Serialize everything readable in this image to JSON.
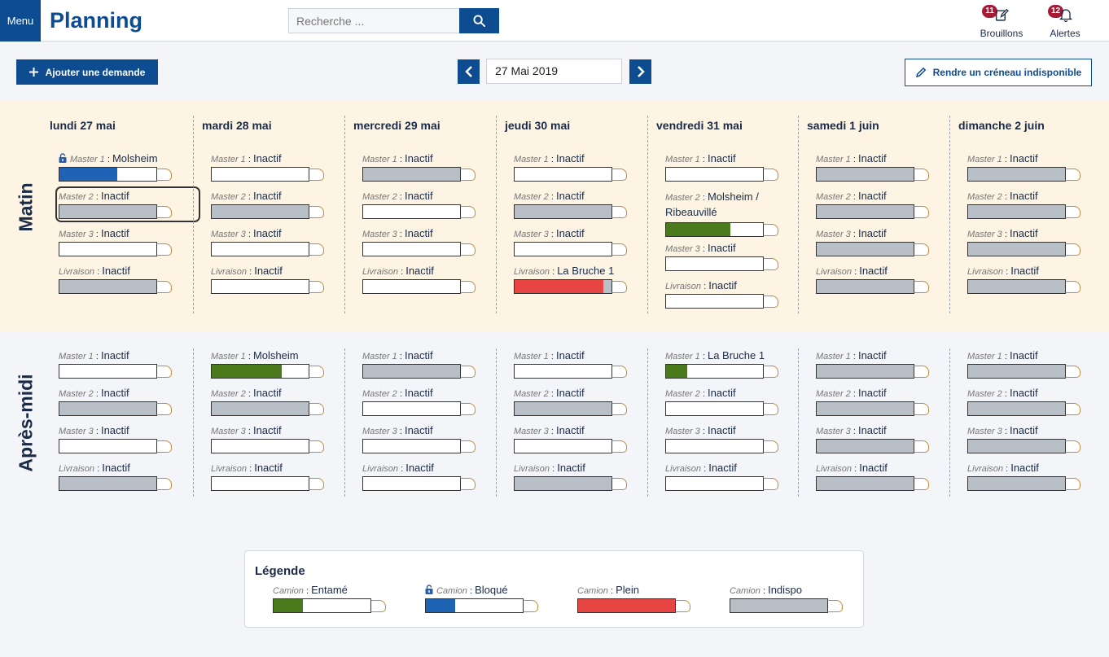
{
  "header": {
    "menu_label": "Menu",
    "title": "Planning",
    "search_placeholder": "Recherche ...",
    "drafts": {
      "label": "Brouillons",
      "count": "11"
    },
    "alerts": {
      "label": "Alertes",
      "count": "12"
    }
  },
  "toolbar": {
    "add_request_label": "Ajouter une demande",
    "current_date": "27 Mai 2019",
    "make_unavailable_label": "Rendre un créneau indisponible"
  },
  "periods": {
    "morning": "Matin",
    "afternoon": "Après-midi"
  },
  "colors": {
    "started": "#4b7a1c",
    "blocked": "#1f63b5",
    "full": "#e84444",
    "unavailable": "#b9bfc7",
    "primary": "#0e4c92"
  },
  "days": [
    {
      "header": "lundi 27 mai",
      "morning": [
        {
          "name": "Master 1",
          "value": "Molsheim",
          "state": "blocked",
          "fill": 0.6,
          "locked": true
        },
        {
          "name": "Master 2",
          "value": "Inactif",
          "state": "unavailable",
          "fill": 1,
          "selected": true
        },
        {
          "name": "Master 3",
          "value": "Inactif",
          "state": "empty",
          "fill": 0
        },
        {
          "name": "Livraison",
          "value": "Inactif",
          "state": "unavailable",
          "fill": 1
        }
      ],
      "afternoon": [
        {
          "name": "Master 1",
          "value": "Inactif",
          "state": "empty",
          "fill": 0
        },
        {
          "name": "Master 2",
          "value": "Inactif",
          "state": "unavailable",
          "fill": 1
        },
        {
          "name": "Master 3",
          "value": "Inactif",
          "state": "empty",
          "fill": 0
        },
        {
          "name": "Livraison",
          "value": "Inactif",
          "state": "unavailable",
          "fill": 1
        }
      ]
    },
    {
      "header": "mardi 28 mai",
      "morning": [
        {
          "name": "Master 1",
          "value": "Inactif",
          "state": "empty",
          "fill": 0
        },
        {
          "name": "Master 2",
          "value": "Inactif",
          "state": "unavailable",
          "fill": 1
        },
        {
          "name": "Master 3",
          "value": "Inactif",
          "state": "empty",
          "fill": 0
        },
        {
          "name": "Livraison",
          "value": "Inactif",
          "state": "empty",
          "fill": 0
        }
      ],
      "afternoon": [
        {
          "name": "Master 1",
          "value": "Molsheim",
          "state": "started",
          "fill": 0.72
        },
        {
          "name": "Master 2",
          "value": "Inactif",
          "state": "unavailable",
          "fill": 1
        },
        {
          "name": "Master 3",
          "value": "Inactif",
          "state": "empty",
          "fill": 0
        },
        {
          "name": "Livraison",
          "value": "Inactif",
          "state": "empty",
          "fill": 0
        }
      ]
    },
    {
      "header": "mercredi 29 mai",
      "morning": [
        {
          "name": "Master 1",
          "value": "Inactif",
          "state": "unavailable",
          "fill": 1
        },
        {
          "name": "Master 2",
          "value": "Inactif",
          "state": "empty",
          "fill": 0
        },
        {
          "name": "Master 3",
          "value": "Inactif",
          "state": "empty",
          "fill": 0
        },
        {
          "name": "Livraison",
          "value": "Inactif",
          "state": "empty",
          "fill": 0
        }
      ],
      "afternoon": [
        {
          "name": "Master 1",
          "value": "Inactif",
          "state": "unavailable",
          "fill": 1
        },
        {
          "name": "Master 2",
          "value": "Inactif",
          "state": "empty",
          "fill": 0
        },
        {
          "name": "Master 3",
          "value": "Inactif",
          "state": "empty",
          "fill": 0
        },
        {
          "name": "Livraison",
          "value": "Inactif",
          "state": "empty",
          "fill": 0
        }
      ]
    },
    {
      "header": "jeudi 30 mai",
      "morning": [
        {
          "name": "Master 1",
          "value": "Inactif",
          "state": "empty",
          "fill": 0
        },
        {
          "name": "Master 2",
          "value": "Inactif",
          "state": "unavailable",
          "fill": 1
        },
        {
          "name": "Master 3",
          "value": "Inactif",
          "state": "empty",
          "fill": 0
        },
        {
          "name": "Livraison",
          "value": "La Bruche 1",
          "state": "full",
          "fill": 0.92
        }
      ],
      "afternoon": [
        {
          "name": "Master 1",
          "value": "Inactif",
          "state": "empty",
          "fill": 0
        },
        {
          "name": "Master 2",
          "value": "Inactif",
          "state": "unavailable",
          "fill": 1
        },
        {
          "name": "Master 3",
          "value": "Inactif",
          "state": "empty",
          "fill": 0
        },
        {
          "name": "Livraison",
          "value": "Inactif",
          "state": "unavailable",
          "fill": 1
        }
      ]
    },
    {
      "header": "vendredi 31 mai",
      "morning": [
        {
          "name": "Master 1",
          "value": "Inactif",
          "state": "empty",
          "fill": 0
        },
        {
          "name": "Master 2",
          "value": "Molsheim / Ribeauvillé",
          "state": "started",
          "fill": 0.66
        },
        {
          "name": "Master 3",
          "value": "Inactif",
          "state": "empty",
          "fill": 0
        },
        {
          "name": "Livraison",
          "value": "Inactif",
          "state": "empty",
          "fill": 0
        }
      ],
      "afternoon": [
        {
          "name": "Master 1",
          "value": "La Bruche 1",
          "state": "started",
          "fill": 0.22
        },
        {
          "name": "Master 2",
          "value": "Inactif",
          "state": "empty",
          "fill": 0
        },
        {
          "name": "Master 3",
          "value": "Inactif",
          "state": "empty",
          "fill": 0
        },
        {
          "name": "Livraison",
          "value": "Inactif",
          "state": "empty",
          "fill": 0
        }
      ]
    },
    {
      "header": "samedi 1 juin",
      "morning": [
        {
          "name": "Master 1",
          "value": "Inactif",
          "state": "unavailable",
          "fill": 1
        },
        {
          "name": "Master 2",
          "value": "Inactif",
          "state": "unavailable",
          "fill": 1
        },
        {
          "name": "Master 3",
          "value": "Inactif",
          "state": "unavailable",
          "fill": 1
        },
        {
          "name": "Livraison",
          "value": "Inactif",
          "state": "unavailable",
          "fill": 1
        }
      ],
      "afternoon": [
        {
          "name": "Master 1",
          "value": "Inactif",
          "state": "unavailable",
          "fill": 1
        },
        {
          "name": "Master 2",
          "value": "Inactif",
          "state": "unavailable",
          "fill": 1
        },
        {
          "name": "Master 3",
          "value": "Inactif",
          "state": "unavailable",
          "fill": 1
        },
        {
          "name": "Livraison",
          "value": "Inactif",
          "state": "unavailable",
          "fill": 1
        }
      ]
    },
    {
      "header": "dimanche 2 juin",
      "morning": [
        {
          "name": "Master 1",
          "value": "Inactif",
          "state": "unavailable",
          "fill": 1
        },
        {
          "name": "Master 2",
          "value": "Inactif",
          "state": "unavailable",
          "fill": 1
        },
        {
          "name": "Master 3",
          "value": "Inactif",
          "state": "unavailable",
          "fill": 1
        },
        {
          "name": "Livraison",
          "value": "Inactif",
          "state": "unavailable",
          "fill": 1
        }
      ],
      "afternoon": [
        {
          "name": "Master 1",
          "value": "Inactif",
          "state": "unavailable",
          "fill": 1
        },
        {
          "name": "Master 2",
          "value": "Inactif",
          "state": "unavailable",
          "fill": 1
        },
        {
          "name": "Master 3",
          "value": "Inactif",
          "state": "unavailable",
          "fill": 1
        },
        {
          "name": "Livraison",
          "value": "Inactif",
          "state": "unavailable",
          "fill": 1
        }
      ]
    }
  ],
  "legend": {
    "title": "Légende",
    "items": [
      {
        "name": "Camion",
        "value": "Entamé",
        "state": "started",
        "fill": 0.3
      },
      {
        "name": "Camion",
        "value": "Bloqué",
        "state": "blocked",
        "fill": 0.3,
        "locked": true
      },
      {
        "name": "Camion",
        "value": "Plein",
        "state": "full",
        "fill": 1
      },
      {
        "name": "Camion",
        "value": "Indispo",
        "state": "unavailable",
        "fill": 1
      }
    ]
  }
}
